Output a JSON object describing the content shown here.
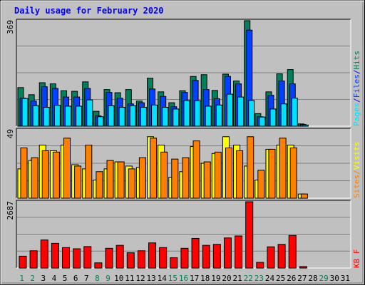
{
  "chart_data": {
    "type": "bar",
    "title": "Daily usage for February 2020",
    "categories": [
      "1",
      "2",
      "3",
      "4",
      "5",
      "6",
      "7",
      "8",
      "9",
      "10",
      "11",
      "12",
      "13",
      "14",
      "15",
      "16",
      "17",
      "18",
      "19",
      "20",
      "21",
      "22",
      "23",
      "24",
      "25",
      "26",
      "27",
      "28",
      "29",
      "30",
      "31"
    ],
    "weekend_days": [
      "1",
      "2",
      "8",
      "9",
      "15",
      "16",
      "22",
      "23",
      "29"
    ],
    "panels": [
      {
        "id": "hits-files-pages",
        "max_label": "369",
        "max": 369,
        "legend": [
          {
            "label": "Pages",
            "color": "#00e0ff"
          },
          {
            "label": "/",
            "color": "#0000ff"
          },
          {
            "label": "Files",
            "color": "#0040ff"
          },
          {
            "label": "/",
            "color": "#0000ff"
          },
          {
            "label": "Hits",
            "color": "#00805c"
          }
        ],
        "series": [
          {
            "name": "Hits",
            "color": "#00805c",
            "values": [
              135,
              110,
              152,
              148,
              124,
              122,
              155,
              52,
              128,
              117,
              128,
              88,
              168,
              120,
              82,
              124,
              174,
              180,
              125,
              182,
              158,
              369,
              44,
              120,
              183,
              198,
              8,
              0,
              0,
              0,
              0
            ]
          },
          {
            "name": "Files",
            "color": "#0040ff",
            "values": [
              98,
              88,
              138,
              132,
              102,
              102,
              132,
              36,
              118,
              98,
              78,
              82,
              130,
              104,
              68,
              118,
              160,
              128,
              96,
              174,
              148,
              336,
              33,
              108,
              158,
              148,
              6,
              0,
              0,
              0,
              0
            ]
          },
          {
            "name": "Pages",
            "color": "#00e0ff",
            "values": [
              97,
              72,
              66,
              73,
              70,
              70,
              92,
              33,
              72,
              66,
              72,
              66,
              74,
              66,
              60,
              90,
              89,
              70,
              74,
              112,
              102,
              90,
              32,
              60,
              78,
              98,
              4,
              0,
              0,
              0,
              0
            ]
          }
        ]
      },
      {
        "id": "visits-sites",
        "max_label": "49",
        "max": 49,
        "legend": [
          {
            "label": "Sites",
            "color": "#ff8000"
          },
          {
            "label": "/",
            "color": "#ff8000"
          },
          {
            "label": "Visits",
            "color": "#ffff00"
          }
        ],
        "series": [
          {
            "name": "Visits",
            "color": "#ffff00",
            "values": [
              21,
              27,
              38,
              34,
              38,
              24,
              21,
              13,
              21,
              26,
              23,
              22,
              44,
              38,
              15,
              19,
              37,
              25,
              32,
              44,
              38,
              23,
              13,
              35,
              38,
              38,
              3,
              0,
              0,
              0,
              0
            ]
          },
          {
            "name": "Sites",
            "color": "#ff8000",
            "values": [
              36,
              29,
              34,
              33,
              43,
              23,
              38,
              19,
              27,
              26,
              21,
              29,
              43,
              33,
              28,
              29,
              41,
              26,
              33,
              36,
              34,
              44,
              20,
              35,
              43,
              36,
              3,
              0,
              0,
              0,
              0
            ]
          }
        ]
      },
      {
        "id": "kbytes",
        "max_label": "2687",
        "max": 2687,
        "legend": [
          {
            "label": "KB F",
            "color": "#ff0000"
          }
        ],
        "series": [
          {
            "name": "KB F",
            "color": "#ff0000",
            "values": [
              480,
              700,
              1140,
              1000,
              830,
              780,
              870,
              210,
              800,
              920,
              620,
              700,
              1020,
              830,
              420,
              800,
              1200,
              920,
              960,
              1220,
              1300,
              2687,
              230,
              860,
              960,
              1320,
              60,
              0,
              0,
              0,
              0
            ]
          }
        ]
      }
    ]
  }
}
